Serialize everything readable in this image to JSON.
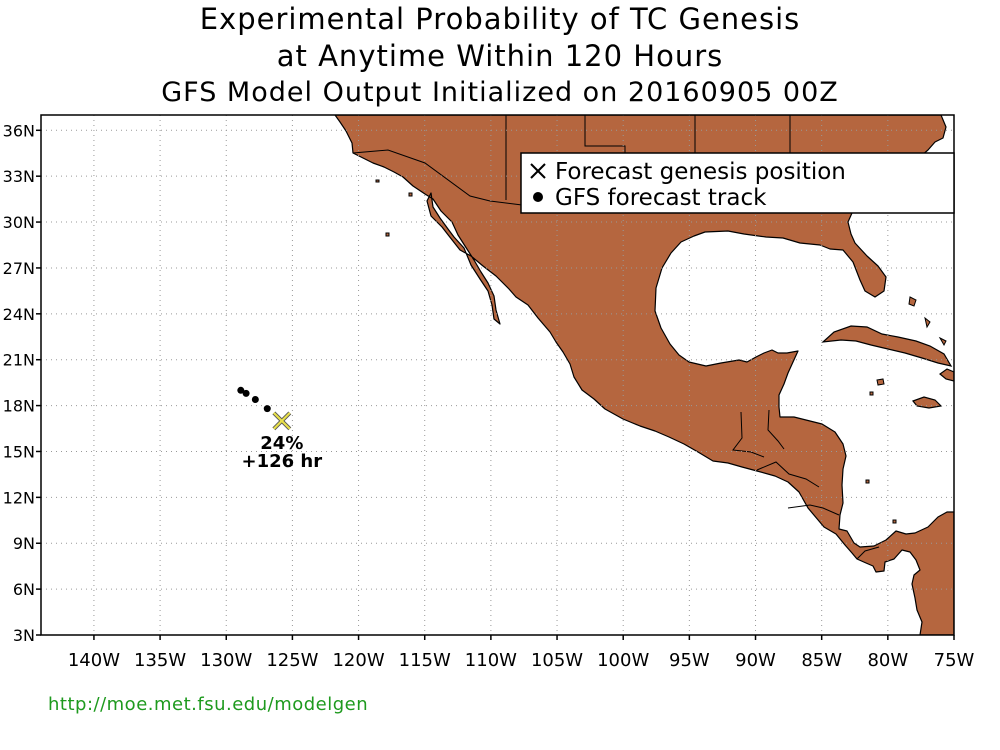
{
  "title": {
    "line1": "Experimental Probability of TC Genesis",
    "line2": "at Anytime Within 120 Hours",
    "line3": "GFS Model Output Initialized on 20160905 00Z"
  },
  "map": {
    "lon_range": [
      -144,
      -75
    ],
    "lat_range": [
      3,
      37
    ],
    "y_ticks": [
      {
        "lat": 36,
        "label": "36N"
      },
      {
        "lat": 33,
        "label": "33N"
      },
      {
        "lat": 30,
        "label": "30N"
      },
      {
        "lat": 27,
        "label": "27N"
      },
      {
        "lat": 24,
        "label": "24N"
      },
      {
        "lat": 21,
        "label": "21N"
      },
      {
        "lat": 18,
        "label": "18N"
      },
      {
        "lat": 15,
        "label": "15N"
      },
      {
        "lat": 12,
        "label": "12N"
      },
      {
        "lat": 9,
        "label": "9N"
      },
      {
        "lat": 6,
        "label": "6N"
      },
      {
        "lat": 3,
        "label": "3N"
      }
    ],
    "x_ticks": [
      {
        "lon": -140,
        "label": "140W"
      },
      {
        "lon": -135,
        "label": "135W"
      },
      {
        "lon": -130,
        "label": "130W"
      },
      {
        "lon": -125,
        "label": "125W"
      },
      {
        "lon": -120,
        "label": "120W"
      },
      {
        "lon": -115,
        "label": "115W"
      },
      {
        "lon": -110,
        "label": "110W"
      },
      {
        "lon": -105,
        "label": "105W"
      },
      {
        "lon": -100,
        "label": "100W"
      },
      {
        "lon": -95,
        "label": "95W"
      },
      {
        "lon": -90,
        "label": "90W"
      },
      {
        "lon": -85,
        "label": "85W"
      },
      {
        "lon": -80,
        "label": "80W"
      },
      {
        "lon": -75,
        "label": "75W"
      }
    ],
    "land_color": "#b5663f",
    "marker_color": "#e8e04a",
    "grid": true
  },
  "legend": {
    "genesis_label": "Forecast genesis position",
    "track_label": "GFS forecast track"
  },
  "track_points": [
    {
      "lon": -128.9,
      "lat": 19.0
    },
    {
      "lon": -128.5,
      "lat": 18.8
    },
    {
      "lon": -127.8,
      "lat": 18.4
    },
    {
      "lon": -126.9,
      "lat": 17.8
    }
  ],
  "genesis": {
    "lon": -125.8,
    "lat": 17.0,
    "probability": "24%",
    "lead_time": "+126 hr"
  },
  "footer": {
    "url": "http://moe.met.fsu.edu/modelgen"
  }
}
